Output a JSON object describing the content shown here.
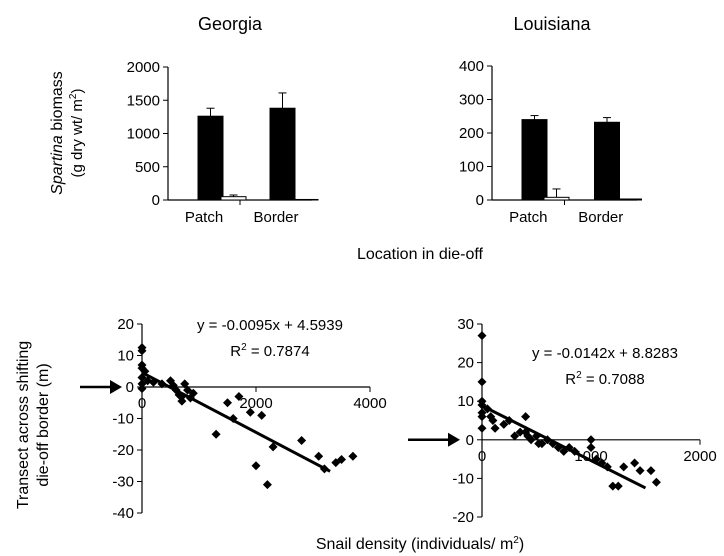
{
  "figure": {
    "top_xlabel": "Location in die-off",
    "top_ylabel_italic": "Spartina",
    "top_ylabel_rest": " biomass",
    "top_ylabel_units_pre": "(g dry wt/ m",
    "top_ylabel_units_sup": "2",
    "top_ylabel_units_post": ")",
    "bottom_ylabel_line1": "Transect across shifting",
    "bottom_ylabel_line2": "die-off border  (m)",
    "bottom_xlabel_pre": "Snail density (individuals/ m",
    "bottom_xlabel_sup": "2",
    "bottom_xlabel_post": ")"
  },
  "colors": {
    "filled_bar": "#000000",
    "open_bar": "#ffffff",
    "axis": "#000000",
    "points": "#000000"
  },
  "chart_data": [
    {
      "type": "bar",
      "title": "Georgia",
      "categories": [
        "Patch",
        "Border"
      ],
      "series": [
        {
          "fill": "black",
          "values": [
            1260,
            1380
          ],
          "errors": [
            120,
            230
          ]
        },
        {
          "fill": "white",
          "values": [
            50,
            8
          ],
          "errors": [
            25,
            0
          ]
        }
      ],
      "yticks": [
        0,
        500,
        1000,
        1500,
        2000
      ],
      "ylim": [
        0,
        2000
      ]
    },
    {
      "type": "bar",
      "title": "Louisiana",
      "categories": [
        "Patch",
        "Border"
      ],
      "series": [
        {
          "fill": "black",
          "values": [
            240,
            232
          ],
          "errors": [
            12,
            14
          ]
        },
        {
          "fill": "white",
          "values": [
            8,
            3
          ],
          "errors": [
            25,
            0
          ]
        }
      ],
      "yticks": [
        0,
        100,
        200,
        300,
        400
      ],
      "ylim": [
        0,
        400
      ]
    },
    {
      "type": "scatter",
      "equation": "y = -0.0095x + 4.5939",
      "r2_label": "R",
      "r2_sup": "2",
      "r2_value": " = 0.7874",
      "fit": {
        "slope": -0.0095,
        "intercept": 4.5939,
        "x_range": [
          0,
          3300
        ]
      },
      "xlim": [
        0,
        4000
      ],
      "ylim": [
        -40,
        20
      ],
      "xticks": [
        0,
        2000,
        4000
      ],
      "xtick_labels": [
        "0",
        "2000",
        "4000"
      ],
      "yticks": [
        -40,
        -30,
        -20,
        -10,
        0,
        10,
        20
      ],
      "arrow_y": 0,
      "points": [
        [
          0,
          12.5
        ],
        [
          0,
          11.5
        ],
        [
          0,
          7
        ],
        [
          0,
          6
        ],
        [
          50,
          5
        ],
        [
          0,
          3
        ],
        [
          0,
          1
        ],
        [
          0,
          -0.5
        ],
        [
          100,
          2
        ],
        [
          200,
          1.5
        ],
        [
          350,
          1
        ],
        [
          500,
          2
        ],
        [
          550,
          0.5
        ],
        [
          600,
          -1
        ],
        [
          650,
          -2.5
        ],
        [
          700,
          -3
        ],
        [
          750,
          1
        ],
        [
          800,
          -1
        ],
        [
          900,
          -2
        ],
        [
          700,
          -4.5
        ],
        [
          850,
          -3.5
        ],
        [
          1300,
          -15
        ],
        [
          1500,
          -5
        ],
        [
          1600,
          -10
        ],
        [
          1700,
          -3
        ],
        [
          1900,
          -8
        ],
        [
          2000,
          -25
        ],
        [
          2100,
          -9
        ],
        [
          2300,
          -19
        ],
        [
          2200,
          -31
        ],
        [
          2800,
          -17
        ],
        [
          3100,
          -22
        ],
        [
          3200,
          -26
        ],
        [
          3400,
          -24
        ],
        [
          3500,
          -23
        ],
        [
          3700,
          -22
        ]
      ]
    },
    {
      "type": "scatter",
      "equation": "y = -0.0142x + 8.8283",
      "r2_label": "R",
      "r2_sup": "2",
      "r2_value": " = 0.7088",
      "fit": {
        "slope": -0.0142,
        "intercept": 8.8283,
        "x_range": [
          0,
          1500
        ]
      },
      "xlim": [
        0,
        2000
      ],
      "ylim": [
        -20,
        30
      ],
      "xticks": [
        0,
        1000,
        2000
      ],
      "xtick_labels": [
        "0",
        "1000",
        "2000"
      ],
      "yticks": [
        -20,
        -10,
        0,
        10,
        20,
        30
      ],
      "arrow_y": 0,
      "points": [
        [
          0,
          27
        ],
        [
          0,
          15
        ],
        [
          0,
          10
        ],
        [
          0,
          9
        ],
        [
          0,
          7
        ],
        [
          0,
          6
        ],
        [
          0,
          3
        ],
        [
          50,
          8
        ],
        [
          80,
          6
        ],
        [
          100,
          5
        ],
        [
          120,
          3
        ],
        [
          200,
          4
        ],
        [
          250,
          5
        ],
        [
          300,
          1
        ],
        [
          350,
          2
        ],
        [
          400,
          2
        ],
        [
          400,
          6
        ],
        [
          420,
          1
        ],
        [
          450,
          0
        ],
        [
          500,
          1
        ],
        [
          520,
          -1
        ],
        [
          550,
          -1
        ],
        [
          600,
          0
        ],
        [
          650,
          -1
        ],
        [
          700,
          -2
        ],
        [
          750,
          -3
        ],
        [
          800,
          -2
        ],
        [
          850,
          -3
        ],
        [
          1000,
          0
        ],
        [
          1000,
          -2
        ],
        [
          1050,
          -5
        ],
        [
          1100,
          -6
        ],
        [
          1150,
          -7
        ],
        [
          1200,
          -12
        ],
        [
          1250,
          -12
        ],
        [
          1300,
          -7
        ],
        [
          1400,
          -6
        ],
        [
          1450,
          -8
        ],
        [
          1550,
          -8
        ],
        [
          1600,
          -11
        ]
      ]
    }
  ]
}
